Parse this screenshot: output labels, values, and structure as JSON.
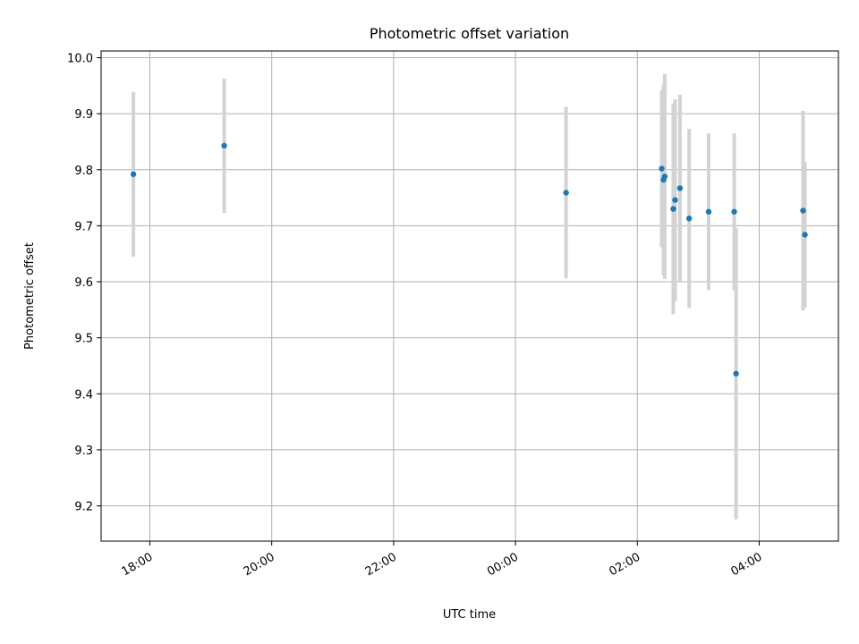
{
  "chart_data": {
    "type": "scatter",
    "title": "Photometric offset variation",
    "xlabel": "UTC time",
    "ylabel": "Photometric offset",
    "x_unit": "hours since 00:00 UTC",
    "xlim": [
      -6.8,
      5.3
    ],
    "ylim": [
      9.137,
      10.012
    ],
    "x_ticks": [
      {
        "value": -6,
        "label": "18:00"
      },
      {
        "value": -4,
        "label": "20:00"
      },
      {
        "value": -2,
        "label": "22:00"
      },
      {
        "value": 0,
        "label": "00:00"
      },
      {
        "value": 2,
        "label": "02:00"
      },
      {
        "value": 4,
        "label": "04:00"
      }
    ],
    "y_ticks": [
      9.2,
      9.3,
      9.4,
      9.5,
      9.6,
      9.7,
      9.8,
      9.9,
      10.0
    ],
    "y_tick_labels": [
      "9.2",
      "9.3",
      "9.4",
      "9.5",
      "9.6",
      "9.7",
      "9.8",
      "9.9",
      "10.0"
    ],
    "grid": true,
    "marker_color": "#1f77b4",
    "errorbar_color": "#d3d3d3",
    "points": [
      {
        "time": "17:44",
        "x": -6.27,
        "y": 9.792,
        "err": 0.147
      },
      {
        "time": "19:13",
        "x": -4.78,
        "y": 9.843,
        "err": 0.12
      },
      {
        "time": "00:50",
        "x": 0.83,
        "y": 9.759,
        "err": 0.153
      },
      {
        "time": "02:24",
        "x": 2.4,
        "y": 9.802,
        "err": 0.14
      },
      {
        "time": "02:26",
        "x": 2.43,
        "y": 9.782,
        "err": 0.17
      },
      {
        "time": "02:27",
        "x": 2.45,
        "y": 9.788,
        "err": 0.183
      },
      {
        "time": "02:35",
        "x": 2.59,
        "y": 9.73,
        "err": 0.188
      },
      {
        "time": "02:37",
        "x": 2.62,
        "y": 9.746,
        "err": 0.18
      },
      {
        "time": "02:42",
        "x": 2.7,
        "y": 9.767,
        "err": 0.167
      },
      {
        "time": "02:51",
        "x": 2.85,
        "y": 9.713,
        "err": 0.16
      },
      {
        "time": "03:10",
        "x": 3.17,
        "y": 9.725,
        "err": 0.14
      },
      {
        "time": "03:35",
        "x": 3.59,
        "y": 9.725,
        "err": 0.14
      },
      {
        "time": "03:37",
        "x": 3.62,
        "y": 9.436,
        "err": 0.26
      },
      {
        "time": "04:43",
        "x": 4.72,
        "y": 9.727,
        "err": 0.178
      },
      {
        "time": "04:45",
        "x": 4.75,
        "y": 9.684,
        "err": 0.13
      }
    ]
  }
}
